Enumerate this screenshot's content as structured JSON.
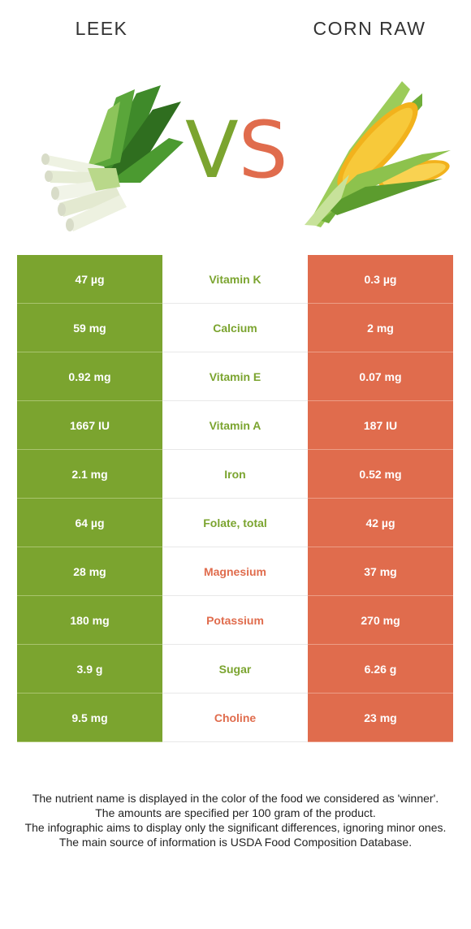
{
  "header": {
    "left_title": "LEEK",
    "right_title": "CORN RAW",
    "vs_v": "V",
    "vs_s": "S"
  },
  "colors": {
    "left_accent": "#7ba42f",
    "right_accent": "#e06c4d"
  },
  "images": {
    "left": "leek-illustration",
    "right": "corn-illustration"
  },
  "rows": [
    {
      "left": "47 µg",
      "nutrient": "Vitamin K",
      "right": "0.3 µg",
      "winner": "left"
    },
    {
      "left": "59 mg",
      "nutrient": "Calcium",
      "right": "2 mg",
      "winner": "left"
    },
    {
      "left": "0.92 mg",
      "nutrient": "Vitamin E",
      "right": "0.07 mg",
      "winner": "left"
    },
    {
      "left": "1667 IU",
      "nutrient": "Vitamin A",
      "right": "187 IU",
      "winner": "left"
    },
    {
      "left": "2.1 mg",
      "nutrient": "Iron",
      "right": "0.52 mg",
      "winner": "left"
    },
    {
      "left": "64 µg",
      "nutrient": "Folate, total",
      "right": "42 µg",
      "winner": "left"
    },
    {
      "left": "28 mg",
      "nutrient": "Magnesium",
      "right": "37 mg",
      "winner": "right"
    },
    {
      "left": "180 mg",
      "nutrient": "Potassium",
      "right": "270 mg",
      "winner": "right"
    },
    {
      "left": "3.9 g",
      "nutrient": "Sugar",
      "right": "6.26 g",
      "winner": "left"
    },
    {
      "left": "9.5 mg",
      "nutrient": "Choline",
      "right": "23 mg",
      "winner": "right"
    }
  ],
  "footer": {
    "line1": "The nutrient name is displayed in the color of the food we considered as 'winner'.",
    "line2": "The amounts are specified per 100 gram of the product.",
    "line3": "The infographic aims to display only the significant differences, ignoring minor ones.",
    "line4": "The main source of information is USDA Food Composition Database."
  }
}
